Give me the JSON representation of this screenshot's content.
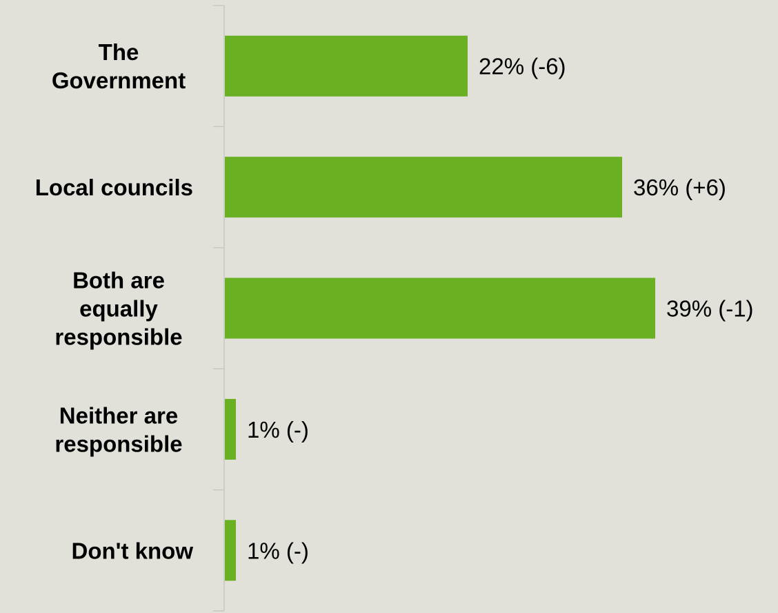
{
  "chart_data": {
    "type": "bar",
    "orientation": "horizontal",
    "categories": [
      "The Government",
      "Local councils",
      "Both are equally responsible",
      "Neither are responsible",
      "Don't know"
    ],
    "category_label_lines": [
      [
        "The",
        "Government"
      ],
      [
        "Local councils"
      ],
      [
        "Both are",
        "equally",
        "responsible"
      ],
      [
        "Neither are",
        "responsible"
      ],
      [
        "Don't know"
      ]
    ],
    "values": [
      22,
      36,
      39,
      1,
      1
    ],
    "data_labels": [
      "22% (-6)",
      "36% (+6)",
      "39% (-1)",
      "1% (-)",
      "1% (-)"
    ],
    "title": "",
    "xlabel": "",
    "ylabel": "",
    "xlim": [
      0,
      50
    ],
    "grid": false,
    "legend": "none",
    "colors": {
      "bar": "#6ab023",
      "background": "#e1e1da",
      "axis": "#c8c8c2",
      "text": "#000000"
    }
  }
}
